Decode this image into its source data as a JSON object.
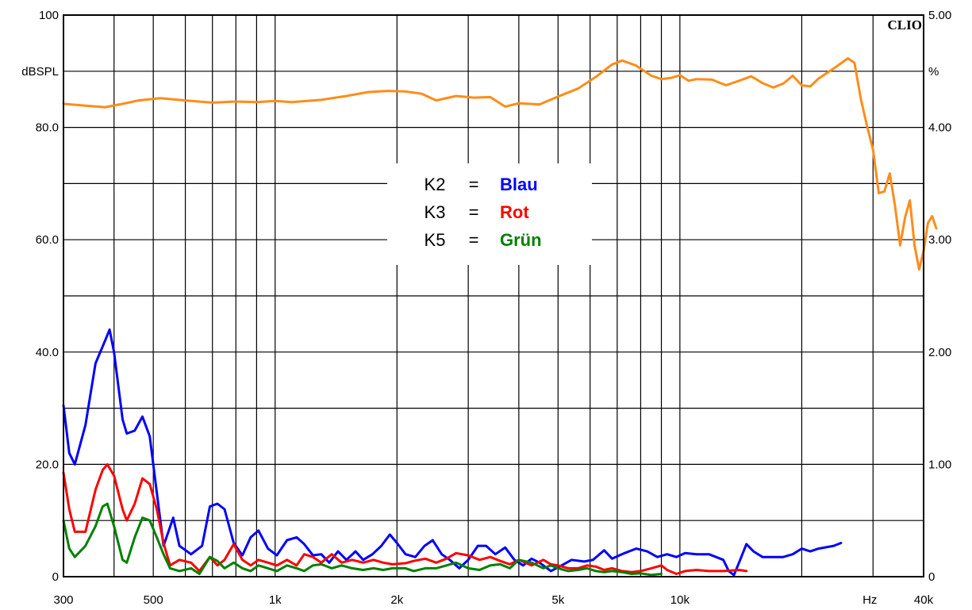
{
  "chart_data": {
    "type": "line",
    "brand": "CLIO",
    "x_scale": "log",
    "xlim": [
      300,
      40000
    ],
    "x_ticks": [
      {
        "value": 300,
        "label": "300"
      },
      {
        "value": 500,
        "label": "500"
      },
      {
        "value": 1000,
        "label": "1k"
      },
      {
        "value": 2000,
        "label": "2k"
      },
      {
        "value": 5000,
        "label": "5k"
      },
      {
        "value": 10000,
        "label": "10k"
      },
      {
        "value": 40000,
        "label": "40k"
      }
    ],
    "x_unit_label": "Hz",
    "ylim_left": [
      0,
      100
    ],
    "y_ticks_left": [
      {
        "value": 100,
        "label": "100"
      },
      {
        "value": 80,
        "label": "80.0"
      },
      {
        "value": 60,
        "label": "60.0"
      },
      {
        "value": 40,
        "label": "40.0"
      },
      {
        "value": 20,
        "label": "20.0"
      },
      {
        "value": 0,
        "label": "0"
      }
    ],
    "y_unit_left": "dBSPL",
    "ylim_right": [
      0,
      5
    ],
    "y_ticks_right": [
      {
        "value": 5,
        "label": "5.00"
      },
      {
        "value": 4,
        "label": "4.00"
      },
      {
        "value": 3,
        "label": "3.00"
      },
      {
        "value": 2,
        "label": "2.00"
      },
      {
        "value": 1,
        "label": "1.00"
      },
      {
        "value": 0,
        "label": "0"
      }
    ],
    "y_unit_right": "%",
    "grid": true,
    "legend": {
      "placement": "center",
      "entries": [
        {
          "key": "K2",
          "eq": "=",
          "name": "Blau",
          "color": "#0000ff"
        },
        {
          "key": "K3",
          "eq": "=",
          "name": "Rot",
          "color": "#ff0000"
        },
        {
          "key": "K5",
          "eq": "=",
          "name": "Grün",
          "color": "#008000"
        }
      ]
    },
    "series": [
      {
        "id": "spl",
        "color": "#ff8c1a",
        "axis": "left",
        "points": [
          [
            300,
            84.2
          ],
          [
            350,
            83.8
          ],
          [
            380,
            83.6
          ],
          [
            420,
            84.2
          ],
          [
            460,
            84.8
          ],
          [
            520,
            85.2
          ],
          [
            600,
            84.8
          ],
          [
            700,
            84.4
          ],
          [
            800,
            84.6
          ],
          [
            900,
            84.5
          ],
          [
            1000,
            84.7
          ],
          [
            1100,
            84.5
          ],
          [
            1300,
            84.9
          ],
          [
            1500,
            85.6
          ],
          [
            1700,
            86.3
          ],
          [
            1900,
            86.5
          ],
          [
            2100,
            86.4
          ],
          [
            2300,
            86
          ],
          [
            2500,
            84.8
          ],
          [
            2800,
            85.6
          ],
          [
            3100,
            85.3
          ],
          [
            3400,
            85.4
          ],
          [
            3700,
            83.7
          ],
          [
            4000,
            84.3
          ],
          [
            4500,
            84.1
          ],
          [
            5000,
            85.5
          ],
          [
            5600,
            86.9
          ],
          [
            6200,
            89
          ],
          [
            6800,
            91.2
          ],
          [
            7200,
            91.9
          ],
          [
            7800,
            91
          ],
          [
            8500,
            89.2
          ],
          [
            9000,
            88.6
          ],
          [
            9500,
            88.8
          ],
          [
            10000,
            89.3
          ],
          [
            10500,
            88.3
          ],
          [
            11000,
            88.6
          ],
          [
            12000,
            88.5
          ],
          [
            13000,
            87.5
          ],
          [
            14000,
            88.3
          ],
          [
            15000,
            89.1
          ],
          [
            16000,
            87.9
          ],
          [
            17000,
            87.1
          ],
          [
            18000,
            87.8
          ],
          [
            19000,
            89.2
          ],
          [
            20000,
            87.5
          ],
          [
            21000,
            87.3
          ],
          [
            22000,
            88.7
          ],
          [
            24000,
            90.5
          ],
          [
            26000,
            92.3
          ],
          [
            27000,
            91.5
          ],
          [
            28000,
            85
          ],
          [
            29000,
            80.2
          ],
          [
            30000,
            76
          ],
          [
            31000,
            68.3
          ],
          [
            32000,
            68.6
          ],
          [
            33000,
            71.8
          ],
          [
            34000,
            66
          ],
          [
            35000,
            59
          ],
          [
            36000,
            64
          ],
          [
            37000,
            67
          ],
          [
            38000,
            59
          ],
          [
            39000,
            54.7
          ],
          [
            40000,
            58
          ],
          [
            41000,
            63
          ],
          [
            42000,
            64.2
          ],
          [
            43000,
            62
          ]
        ]
      },
      {
        "id": "k2",
        "color": "#0000ff",
        "axis": "left",
        "points": [
          [
            300,
            30.5
          ],
          [
            310,
            22
          ],
          [
            320,
            20
          ],
          [
            340,
            27
          ],
          [
            360,
            38
          ],
          [
            380,
            42
          ],
          [
            390,
            44
          ],
          [
            400,
            40
          ],
          [
            420,
            28
          ],
          [
            430,
            25.5
          ],
          [
            450,
            26
          ],
          [
            470,
            28.5
          ],
          [
            490,
            25
          ],
          [
            510,
            15
          ],
          [
            530,
            5.5
          ],
          [
            560,
            10.5
          ],
          [
            580,
            5.5
          ],
          [
            620,
            4
          ],
          [
            660,
            5.5
          ],
          [
            690,
            12.5
          ],
          [
            720,
            13
          ],
          [
            750,
            12
          ],
          [
            790,
            6
          ],
          [
            830,
            3.8
          ],
          [
            870,
            7
          ],
          [
            910,
            8.2
          ],
          [
            960,
            5
          ],
          [
            1010,
            3.8
          ],
          [
            1070,
            6.5
          ],
          [
            1130,
            7
          ],
          [
            1180,
            5.8
          ],
          [
            1240,
            3.8
          ],
          [
            1300,
            4
          ],
          [
            1360,
            2.5
          ],
          [
            1430,
            4.5
          ],
          [
            1500,
            3
          ],
          [
            1580,
            4.5
          ],
          [
            1650,
            3
          ],
          [
            1740,
            4
          ],
          [
            1830,
            5.5
          ],
          [
            1920,
            7.5
          ],
          [
            2000,
            6
          ],
          [
            2100,
            4
          ],
          [
            2220,
            3.5
          ],
          [
            2340,
            5.5
          ],
          [
            2450,
            6.5
          ],
          [
            2580,
            4
          ],
          [
            2700,
            3
          ],
          [
            2850,
            1.5
          ],
          [
            3000,
            3
          ],
          [
            3170,
            5.5
          ],
          [
            3320,
            5.5
          ],
          [
            3500,
            4
          ],
          [
            3700,
            5.2
          ],
          [
            3900,
            3
          ],
          [
            4100,
            2
          ],
          [
            4300,
            3.2
          ],
          [
            4500,
            2.5
          ],
          [
            4800,
            1
          ],
          [
            5100,
            2
          ],
          [
            5400,
            3
          ],
          [
            5800,
            2.7
          ],
          [
            6100,
            3
          ],
          [
            6500,
            4.7
          ],
          [
            6800,
            3.2
          ],
          [
            7300,
            4.2
          ],
          [
            7800,
            5
          ],
          [
            8300,
            4.5
          ],
          [
            8800,
            3.5
          ],
          [
            9300,
            4
          ],
          [
            9800,
            3.5
          ],
          [
            10300,
            4.2
          ],
          [
            11000,
            4
          ],
          [
            11800,
            4
          ],
          [
            12800,
            3
          ],
          [
            13200,
            1
          ],
          [
            13600,
            0.3
          ],
          [
            14000,
            2.5
          ],
          [
            14600,
            5.8
          ],
          [
            15200,
            4.5
          ],
          [
            16000,
            3.5
          ],
          [
            18000,
            3.5
          ],
          [
            19000,
            4
          ],
          [
            20000,
            5
          ],
          [
            21000,
            4.5
          ],
          [
            22000,
            5
          ],
          [
            24000,
            5.5
          ],
          [
            25000,
            6
          ]
        ]
      },
      {
        "id": "k3",
        "color": "#ff0000",
        "axis": "left",
        "points": [
          [
            300,
            18.5
          ],
          [
            310,
            12
          ],
          [
            320,
            8
          ],
          [
            340,
            8
          ],
          [
            360,
            15.5
          ],
          [
            375,
            19
          ],
          [
            385,
            20
          ],
          [
            400,
            18
          ],
          [
            420,
            12
          ],
          [
            430,
            10
          ],
          [
            450,
            13
          ],
          [
            470,
            17.5
          ],
          [
            490,
            16.5
          ],
          [
            510,
            12
          ],
          [
            530,
            6
          ],
          [
            550,
            2
          ],
          [
            580,
            3
          ],
          [
            620,
            2.5
          ],
          [
            650,
            1
          ],
          [
            690,
            3.5
          ],
          [
            720,
            2
          ],
          [
            750,
            3
          ],
          [
            790,
            5.8
          ],
          [
            830,
            3
          ],
          [
            870,
            2
          ],
          [
            910,
            3
          ],
          [
            960,
            2.5
          ],
          [
            1010,
            2
          ],
          [
            1070,
            3
          ],
          [
            1130,
            2
          ],
          [
            1180,
            4
          ],
          [
            1240,
            3.5
          ],
          [
            1300,
            2.5
          ],
          [
            1380,
            4
          ],
          [
            1460,
            2.5
          ],
          [
            1550,
            3
          ],
          [
            1650,
            2.5
          ],
          [
            1750,
            3
          ],
          [
            1850,
            2.5
          ],
          [
            1950,
            2.2
          ],
          [
            2100,
            2.4
          ],
          [
            2200,
            2.8
          ],
          [
            2350,
            3.2
          ],
          [
            2500,
            2.5
          ],
          [
            2650,
            3.2
          ],
          [
            2800,
            4.2
          ],
          [
            3000,
            3.8
          ],
          [
            3200,
            3
          ],
          [
            3400,
            3.5
          ],
          [
            3600,
            2.8
          ],
          [
            3800,
            2.2
          ],
          [
            4000,
            3
          ],
          [
            4300,
            2
          ],
          [
            4600,
            3
          ],
          [
            4800,
            2.2
          ],
          [
            5000,
            2
          ],
          [
            5300,
            1.5
          ],
          [
            5600,
            1.5
          ],
          [
            5900,
            2
          ],
          [
            6200,
            1.8
          ],
          [
            6500,
            1.2
          ],
          [
            6800,
            1.5
          ],
          [
            7200,
            1
          ],
          [
            7600,
            0.8
          ],
          [
            8000,
            1
          ],
          [
            8500,
            1.5
          ],
          [
            9000,
            2
          ],
          [
            9300,
            1.2
          ],
          [
            9800,
            0.5
          ],
          [
            10300,
            1
          ],
          [
            11000,
            1.2
          ],
          [
            11800,
            1
          ],
          [
            12800,
            1
          ],
          [
            14000,
            1.2
          ],
          [
            14600,
            1
          ]
        ]
      },
      {
        "id": "k5",
        "color": "#008000",
        "axis": "left",
        "points": [
          [
            300,
            10
          ],
          [
            310,
            5
          ],
          [
            320,
            3.5
          ],
          [
            340,
            5.5
          ],
          [
            360,
            9
          ],
          [
            375,
            12.5
          ],
          [
            385,
            13
          ],
          [
            400,
            9
          ],
          [
            420,
            3
          ],
          [
            430,
            2.5
          ],
          [
            450,
            7
          ],
          [
            470,
            10.5
          ],
          [
            490,
            10
          ],
          [
            510,
            7
          ],
          [
            530,
            4
          ],
          [
            550,
            1.5
          ],
          [
            580,
            1
          ],
          [
            620,
            1.5
          ],
          [
            650,
            0.5
          ],
          [
            690,
            3.5
          ],
          [
            720,
            2.8
          ],
          [
            750,
            1.5
          ],
          [
            790,
            2.5
          ],
          [
            830,
            1.5
          ],
          [
            870,
            1
          ],
          [
            910,
            2
          ],
          [
            960,
            1.5
          ],
          [
            1010,
            1
          ],
          [
            1070,
            2
          ],
          [
            1130,
            1.5
          ],
          [
            1180,
            1
          ],
          [
            1240,
            2
          ],
          [
            1300,
            2.2
          ],
          [
            1380,
            1.5
          ],
          [
            1460,
            2
          ],
          [
            1550,
            1.5
          ],
          [
            1650,
            1.2
          ],
          [
            1750,
            1.5
          ],
          [
            1850,
            1.2
          ],
          [
            1950,
            1.5
          ],
          [
            2100,
            1.5
          ],
          [
            2200,
            1
          ],
          [
            2350,
            1.5
          ],
          [
            2500,
            1.5
          ],
          [
            2650,
            2
          ],
          [
            2800,
            2.5
          ],
          [
            3000,
            1.5
          ],
          [
            3200,
            1.2
          ],
          [
            3400,
            2
          ],
          [
            3600,
            2.2
          ],
          [
            3800,
            1.5
          ],
          [
            4000,
            3
          ],
          [
            4300,
            2.5
          ],
          [
            4600,
            1.5
          ],
          [
            4800,
            2
          ],
          [
            5000,
            1.5
          ],
          [
            5300,
            1
          ],
          [
            5600,
            1.2
          ],
          [
            5900,
            1.5
          ],
          [
            6200,
            1
          ],
          [
            6500,
            0.8
          ],
          [
            6800,
            1
          ],
          [
            7200,
            0.8
          ],
          [
            7600,
            0.5
          ],
          [
            8000,
            0.6
          ],
          [
            8500,
            0.3
          ],
          [
            9000,
            0.5
          ]
        ]
      }
    ]
  }
}
